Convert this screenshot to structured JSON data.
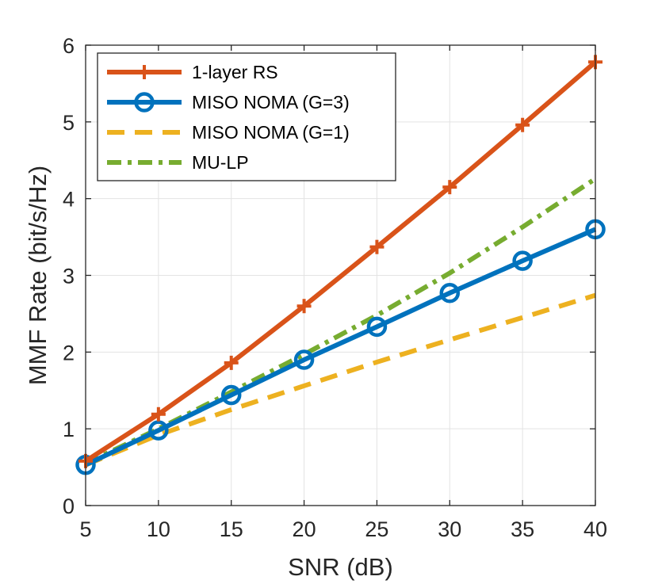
{
  "chart_data": {
    "type": "line",
    "title": "",
    "xlabel": "SNR (dB)",
    "ylabel": "MMF Rate (bit/s/Hz)",
    "xlim": [
      5,
      40
    ],
    "ylim": [
      0,
      6
    ],
    "xticks": [
      5,
      10,
      15,
      20,
      25,
      30,
      35,
      40
    ],
    "yticks": [
      0,
      1,
      2,
      3,
      4,
      5,
      6
    ],
    "grid": true,
    "legend_position": "top-left",
    "x": [
      5,
      10,
      15,
      20,
      25,
      30,
      35,
      40
    ],
    "series": [
      {
        "name": "1-layer RS",
        "color": "#D95319",
        "style": "solid",
        "marker": "plus",
        "values": [
          0.58,
          1.19,
          1.86,
          2.6,
          3.37,
          4.15,
          4.96,
          5.78
        ]
      },
      {
        "name": "MISO NOMA (G=3)",
        "color": "#0072BD",
        "style": "solid",
        "marker": "circle",
        "values": [
          0.53,
          0.98,
          1.44,
          1.9,
          2.33,
          2.77,
          3.19,
          3.6
        ]
      },
      {
        "name": "MISO NOMA (G=1)",
        "color": "#EDB120",
        "style": "dashed",
        "marker": "none",
        "values": [
          0.53,
          0.92,
          1.25,
          1.56,
          1.87,
          2.16,
          2.45,
          2.74
        ]
      },
      {
        "name": "MU-LP",
        "color": "#77AC30",
        "style": "dashdot",
        "marker": "none",
        "values": [
          0.55,
          1.0,
          1.48,
          1.97,
          2.48,
          3.03,
          3.63,
          4.26
        ]
      }
    ]
  }
}
